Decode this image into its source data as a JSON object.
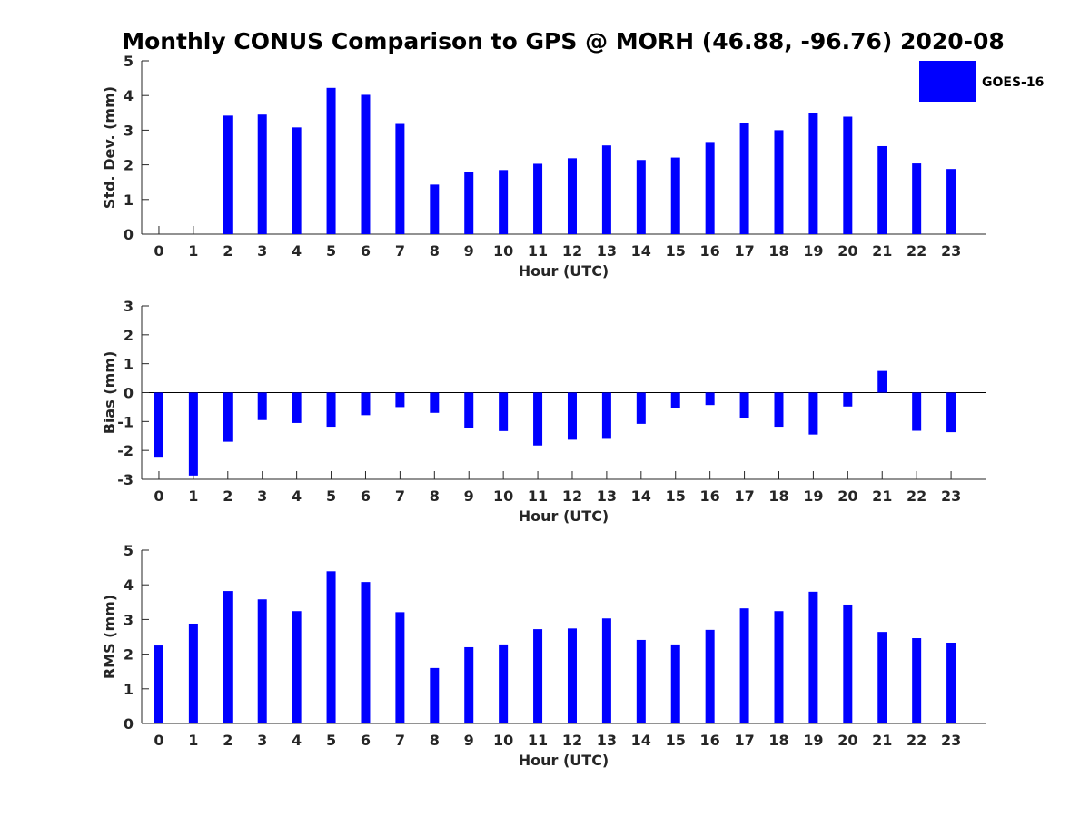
{
  "title": "Monthly CONUS Comparison to GPS @ MORH (46.88, -96.76) 2020-08",
  "legend": {
    "label": "GOES-16",
    "color": "#0000FF",
    "position": "top-right"
  },
  "bar_color": "#0000FF",
  "chart_data": [
    {
      "type": "bar",
      "xlabel": "Hour (UTC)",
      "ylabel": "Std. Dev. (mm)",
      "ylim": [
        0,
        5
      ],
      "yticks": [
        0,
        1,
        2,
        3,
        4,
        5
      ],
      "grid": false,
      "categories": [
        "0",
        "1",
        "2",
        "3",
        "4",
        "5",
        "6",
        "7",
        "8",
        "9",
        "10",
        "11",
        "12",
        "13",
        "14",
        "15",
        "16",
        "17",
        "18",
        "19",
        "20",
        "21",
        "22",
        "23"
      ],
      "series": [
        {
          "name": "GOES-16",
          "values": [
            0,
            0,
            3.42,
            3.45,
            3.08,
            4.22,
            4.02,
            3.18,
            1.43,
            1.8,
            1.85,
            2.03,
            2.19,
            2.56,
            2.14,
            2.21,
            2.66,
            3.21,
            3.0,
            3.5,
            3.39,
            2.54,
            2.04,
            1.88
          ]
        }
      ]
    },
    {
      "type": "bar",
      "xlabel": "Hour (UTC)",
      "ylabel": "Bias (mm)",
      "ylim": [
        -3,
        3
      ],
      "yticks": [
        -3,
        -2,
        -1,
        0,
        1,
        2,
        3
      ],
      "grid": false,
      "categories": [
        "0",
        "1",
        "2",
        "3",
        "4",
        "5",
        "6",
        "7",
        "8",
        "9",
        "10",
        "11",
        "12",
        "13",
        "14",
        "15",
        "16",
        "17",
        "18",
        "19",
        "20",
        "21",
        "22",
        "23"
      ],
      "series": [
        {
          "name": "GOES-16",
          "values": [
            -2.22,
            -2.87,
            -1.7,
            -0.95,
            -1.05,
            -1.18,
            -0.78,
            -0.5,
            -0.7,
            -1.23,
            -1.33,
            -1.83,
            -1.63,
            -1.6,
            -1.08,
            -0.52,
            -0.43,
            -0.88,
            -1.18,
            -1.45,
            -0.48,
            0.75,
            -1.32,
            -1.37
          ]
        }
      ]
    },
    {
      "type": "bar",
      "xlabel": "Hour (UTC)",
      "ylabel": "RMS (mm)",
      "ylim": [
        0,
        5
      ],
      "yticks": [
        0,
        1,
        2,
        3,
        4,
        5
      ],
      "grid": false,
      "categories": [
        "0",
        "1",
        "2",
        "3",
        "4",
        "5",
        "6",
        "7",
        "8",
        "9",
        "10",
        "11",
        "12",
        "13",
        "14",
        "15",
        "16",
        "17",
        "18",
        "19",
        "20",
        "21",
        "22",
        "23"
      ],
      "series": [
        {
          "name": "GOES-16",
          "values": [
            2.25,
            2.88,
            3.82,
            3.58,
            3.24,
            4.39,
            4.08,
            3.21,
            1.6,
            2.2,
            2.28,
            2.72,
            2.74,
            3.03,
            2.41,
            2.28,
            2.7,
            3.32,
            3.24,
            3.8,
            3.43,
            2.64,
            2.46,
            2.33
          ]
        }
      ]
    }
  ]
}
